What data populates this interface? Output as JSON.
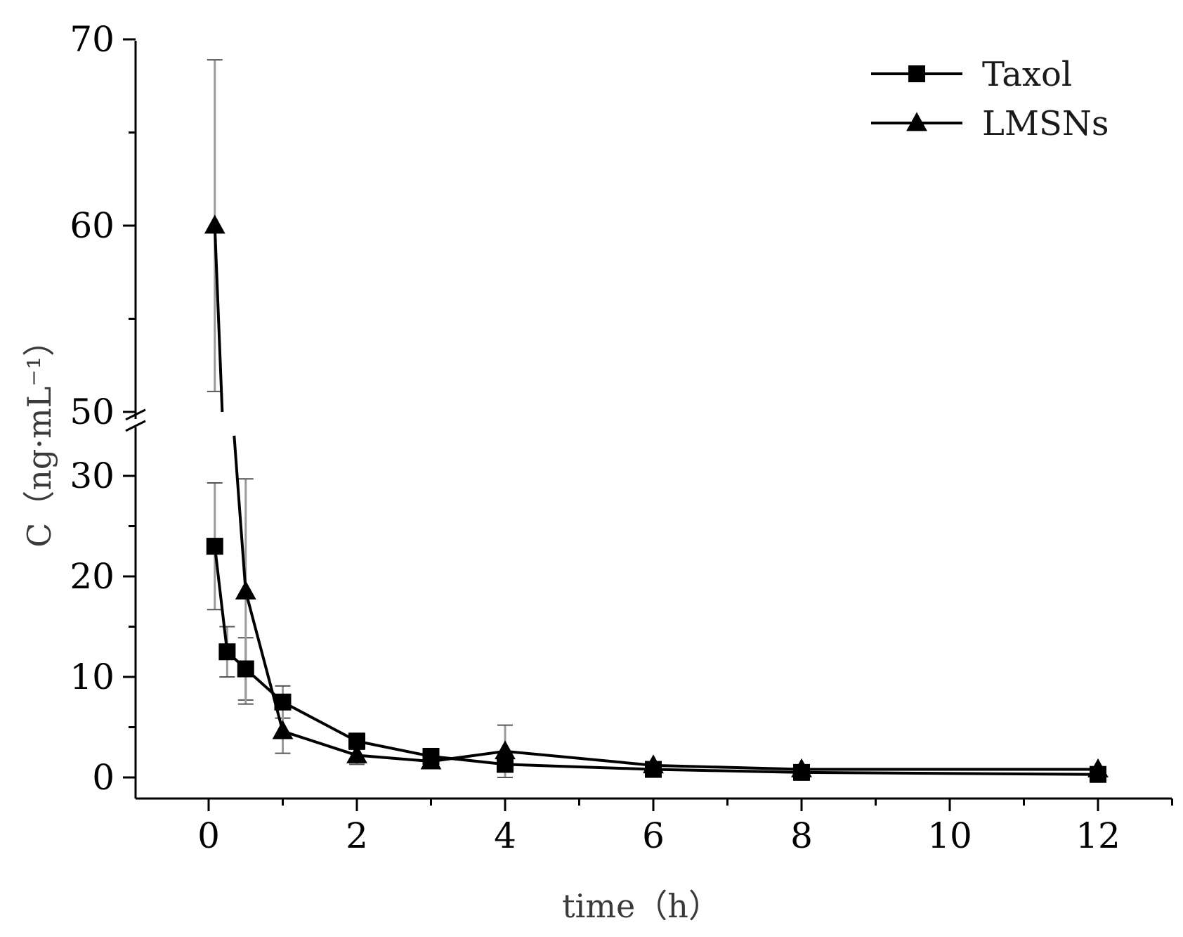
{
  "chart_data": {
    "type": "line",
    "title": "",
    "xlabel": "time（h）",
    "ylabel": "C（ng·mL⁻¹）",
    "xlim": [
      -1,
      13
    ],
    "ylim": [
      -2,
      70
    ],
    "y_axis_break": {
      "from": 34,
      "to": 50
    },
    "x_ticks": [
      0,
      2,
      4,
      6,
      8,
      10,
      12
    ],
    "y_ticks": [
      0,
      10,
      20,
      30,
      50,
      60,
      70
    ],
    "grid": false,
    "legend_position": "top-right",
    "series": [
      {
        "name": "Taxol",
        "marker": "square",
        "color": "#000000",
        "x": [
          0.083,
          0.25,
          0.5,
          1,
          2,
          3,
          4,
          6,
          8,
          12
        ],
        "y": [
          23,
          12.5,
          10.8,
          7.5,
          3.6,
          2.1,
          1.3,
          0.8,
          0.5,
          0.3
        ],
        "error": [
          6.3,
          2.5,
          3.1,
          1.6,
          0.8,
          0.5,
          0.4,
          0.3,
          0.2,
          0.1
        ]
      },
      {
        "name": "LMSNs",
        "marker": "triangle",
        "color": "#000000",
        "x": [
          0.083,
          0.5,
          1,
          2,
          3,
          4,
          6,
          8,
          12
        ],
        "y": [
          60,
          18.5,
          4.6,
          2.2,
          1.6,
          2.6,
          1.2,
          0.8,
          0.8
        ],
        "error": [
          8.9,
          11.2,
          2.2,
          0.9,
          0.5,
          2.6,
          0.3,
          0.2,
          0.2
        ]
      }
    ]
  }
}
